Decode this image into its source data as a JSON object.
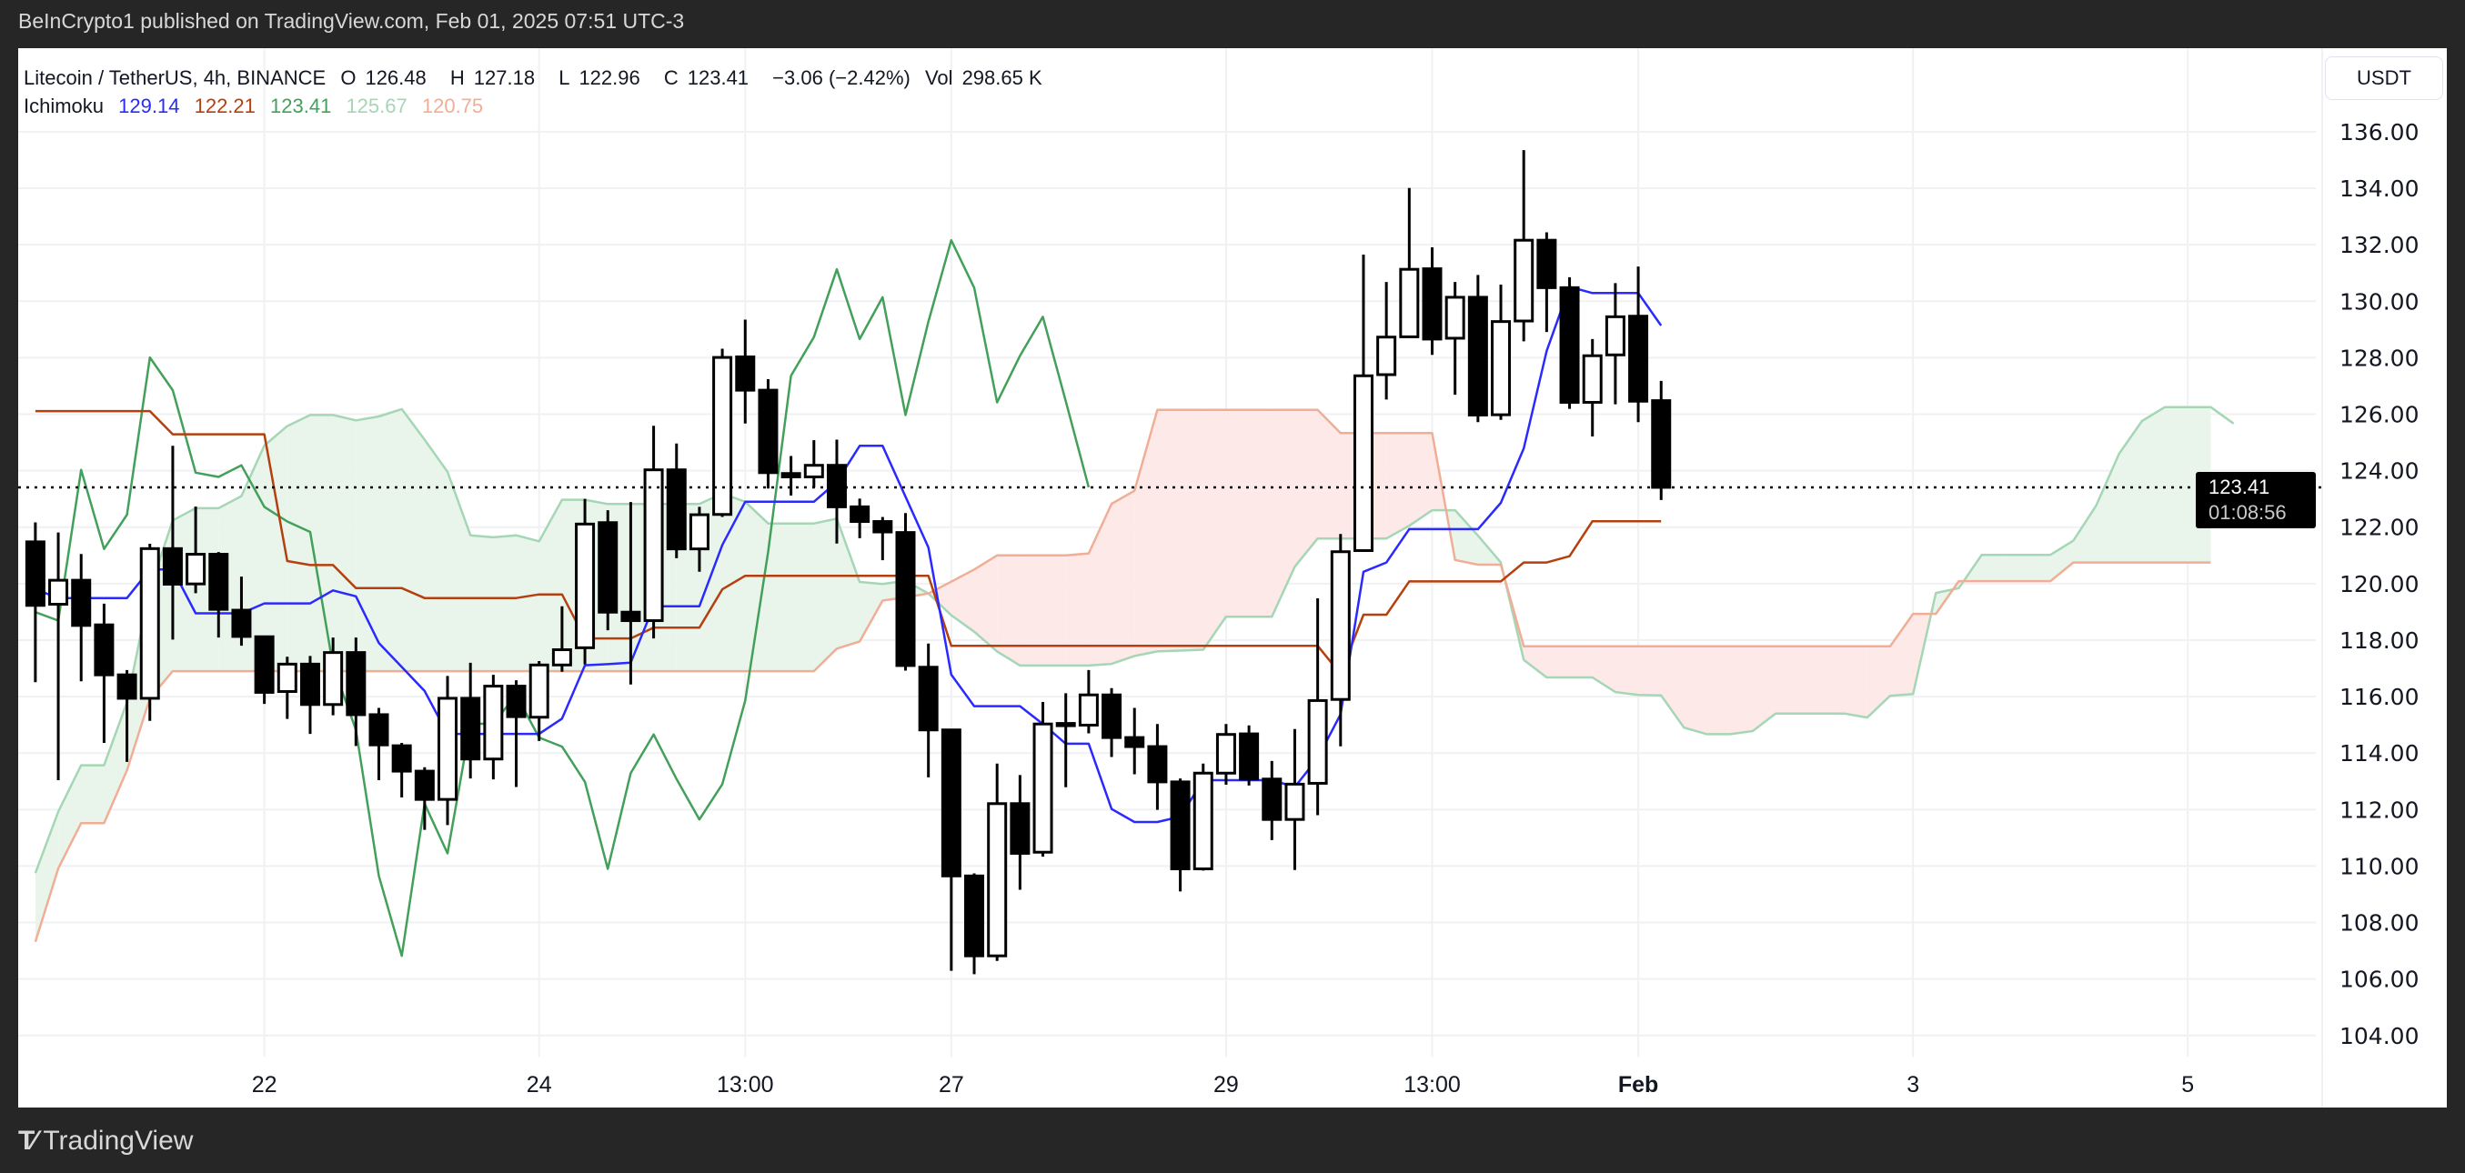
{
  "header": {
    "published": "BeInCrypto1 published on TradingView.com, Feb 01, 2025 07:51 UTC-3"
  },
  "legend": {
    "symbol": "Litecoin / TetherUS, 4h, BINANCE",
    "ohlc": [
      {
        "label": "O",
        "value": "126.48"
      },
      {
        "label": "H",
        "value": "127.18"
      },
      {
        "label": "L",
        "value": "122.96"
      },
      {
        "label": "C",
        "value": "123.41"
      }
    ],
    "change": "−3.06 (−2.42%)",
    "volume_label": "Vol",
    "volume": "298.65 K",
    "indicator": "Ichimoku",
    "indicator_values": [
      "129.14",
      "122.21",
      "123.41",
      "125.67",
      "120.75"
    ]
  },
  "axis": {
    "currency": "USDT",
    "last_price": "123.41",
    "countdown": "01:08:56"
  },
  "footer": {
    "brand": "TradingView",
    "logo_icon": "tradingview-logo-icon"
  },
  "colors": {
    "tenkan": "#2a2aff",
    "kijun": "#b5400f",
    "chikou": "#43a05a",
    "span_a": "#a5d6b5",
    "span_b": "#f0ae96",
    "cloud_bull": "#e9f5eb",
    "cloud_bear": "#fde9e7",
    "candle_up_fill": "#ffffff",
    "candle_down_fill": "#000000",
    "candle_border": "#000000"
  },
  "chart_data": {
    "type": "candlestick",
    "title": "",
    "interval_hours": 4,
    "start": "2025-01-20 09:00",
    "x_range": [
      "2025-01-20 06:00",
      "2025-02-06 00:00"
    ],
    "ylim": [
      103.22,
      138.96
    ],
    "grid": true,
    "price_scale_side": "right",
    "yticks": [
      104,
      106,
      108,
      110,
      112,
      114,
      116,
      118,
      120,
      122,
      124,
      126,
      128,
      130,
      132,
      134,
      136
    ],
    "xticks": [
      {
        "label": "22",
        "time": "2025-01-22 01:00"
      },
      {
        "label": "24",
        "time": "2025-01-24 01:00"
      },
      {
        "label": "13:00",
        "time": "2025-01-25 13:00"
      },
      {
        "label": "27",
        "time": "2025-01-27 01:00"
      },
      {
        "label": "29",
        "time": "2025-01-29 01:00"
      },
      {
        "label": "13:00",
        "time": "2025-01-30 13:00"
      },
      {
        "label": "Feb",
        "time": "2025-02-01 01:00"
      },
      {
        "label": "3",
        "time": "2025-02-03 01:00"
      },
      {
        "label": "5",
        "time": "2025-02-05 01:00"
      }
    ],
    "last_price_line": 123.41,
    "ohlc": [
      [
        121.48,
        122.17,
        116.51,
        119.23
      ],
      [
        119.27,
        121.81,
        113.04,
        120.12
      ],
      [
        120.12,
        121.05,
        116.54,
        118.52
      ],
      [
        118.54,
        119.29,
        114.36,
        116.77
      ],
      [
        116.77,
        116.94,
        113.69,
        115.94
      ],
      [
        115.94,
        121.41,
        115.14,
        121.24
      ],
      [
        121.24,
        124.88,
        118.02,
        119.98
      ],
      [
        119.99,
        122.73,
        119.66,
        121.04
      ],
      [
        121.04,
        121.12,
        118.09,
        119.09
      ],
      [
        119.06,
        120.25,
        117.8,
        118.13
      ],
      [
        118.12,
        118.14,
        115.74,
        116.15
      ],
      [
        116.18,
        117.41,
        115.21,
        117.15
      ],
      [
        117.15,
        117.44,
        114.68,
        115.72
      ],
      [
        115.72,
        118.09,
        115.34,
        117.56
      ],
      [
        117.56,
        118.09,
        114.25,
        115.36
      ],
      [
        115.36,
        115.6,
        113.04,
        114.29
      ],
      [
        114.26,
        114.36,
        112.43,
        113.36
      ],
      [
        113.36,
        113.5,
        111.28,
        112.36
      ],
      [
        112.36,
        116.73,
        111.45,
        115.94
      ],
      [
        115.94,
        117.2,
        113.1,
        113.79
      ],
      [
        113.79,
        116.77,
        113.07,
        116.37
      ],
      [
        116.37,
        116.58,
        112.8,
        115.29
      ],
      [
        115.27,
        117.26,
        114.43,
        117.12
      ],
      [
        117.12,
        119.2,
        116.88,
        117.66
      ],
      [
        117.73,
        123.0,
        117.14,
        122.11
      ],
      [
        122.16,
        122.6,
        118.35,
        118.99
      ],
      [
        118.99,
        122.89,
        116.43,
        118.69
      ],
      [
        118.69,
        125.59,
        118.06,
        124.03
      ],
      [
        124.03,
        124.96,
        120.9,
        121.23
      ],
      [
        121.23,
        122.72,
        120.42,
        122.44
      ],
      [
        122.45,
        128.32,
        122.36,
        128.01
      ],
      [
        128.03,
        129.35,
        125.67,
        126.85
      ],
      [
        126.85,
        127.24,
        123.37,
        123.93
      ],
      [
        123.9,
        124.52,
        123.12,
        123.78
      ],
      [
        123.78,
        125.08,
        123.41,
        124.19
      ],
      [
        124.19,
        125.1,
        121.42,
        122.72
      ],
      [
        122.72,
        123.01,
        121.61,
        122.2
      ],
      [
        122.2,
        122.36,
        120.83,
        121.83
      ],
      [
        121.81,
        122.5,
        116.92,
        117.1
      ],
      [
        117.04,
        117.88,
        113.14,
        114.82
      ],
      [
        114.82,
        114.82,
        106.29,
        109.65
      ],
      [
        109.65,
        109.74,
        106.17,
        106.82
      ],
      [
        106.82,
        113.63,
        106.64,
        112.21
      ],
      [
        112.21,
        113.22,
        109.16,
        110.45
      ],
      [
        110.49,
        115.81,
        110.33,
        115.03
      ],
      [
        115.03,
        116.12,
        112.79,
        115.05
      ],
      [
        114.99,
        116.94,
        114.7,
        116.06
      ],
      [
        116.06,
        116.3,
        113.86,
        114.55
      ],
      [
        114.55,
        115.6,
        113.25,
        114.23
      ],
      [
        114.23,
        115.03,
        111.99,
        112.98
      ],
      [
        112.98,
        113.1,
        109.1,
        109.9
      ],
      [
        109.9,
        113.63,
        109.84,
        113.29
      ],
      [
        113.29,
        115.03,
        112.88,
        114.66
      ],
      [
        114.68,
        114.98,
        112.85,
        113.08
      ],
      [
        113.08,
        113.72,
        110.92,
        111.65
      ],
      [
        111.65,
        114.85,
        109.86,
        112.9
      ],
      [
        112.93,
        119.48,
        111.8,
        115.86
      ],
      [
        115.9,
        121.76,
        114.24,
        121.13
      ],
      [
        121.17,
        131.65,
        121.17,
        127.36
      ],
      [
        127.4,
        130.68,
        126.52,
        128.73
      ],
      [
        128.74,
        134.01,
        128.74,
        131.13
      ],
      [
        131.15,
        131.91,
        128.1,
        128.66
      ],
      [
        128.69,
        130.68,
        126.69,
        130.14
      ],
      [
        130.14,
        130.93,
        125.72,
        125.97
      ],
      [
        125.98,
        130.59,
        125.8,
        129.28
      ],
      [
        129.3,
        135.35,
        128.58,
        132.16
      ],
      [
        132.16,
        132.44,
        128.91,
        130.48
      ],
      [
        130.48,
        130.85,
        126.19,
        126.42
      ],
      [
        126.42,
        128.66,
        125.21,
        128.07
      ],
      [
        128.1,
        130.64,
        126.35,
        129.45
      ],
      [
        129.47,
        131.23,
        125.72,
        126.46
      ],
      [
        126.48,
        127.18,
        122.96,
        123.41
      ]
    ],
    "ichimoku": {
      "displacement": 26,
      "tenkan": [
        119.8,
        119.49,
        119.49,
        119.49,
        119.49,
        120.5,
        120.5,
        118.95,
        118.95,
        118.95,
        119.3,
        119.3,
        119.3,
        119.76,
        119.55,
        117.9,
        117.05,
        116.2,
        114.68,
        114.68,
        114.68,
        114.68,
        114.68,
        115.22,
        117.11,
        117.15,
        117.2,
        119.2,
        119.2,
        119.2,
        121.37,
        122.9,
        122.9,
        122.9,
        122.9,
        123.6,
        124.88,
        124.88,
        123.08,
        121.28,
        116.78,
        115.66,
        115.66,
        115.66,
        115.03,
        114.33,
        114.33,
        112.02,
        111.56,
        111.56,
        111.75,
        113.04,
        113.04,
        113.04,
        113.04,
        112.8,
        113.82,
        115.37,
        120.42,
        120.75,
        121.93,
        121.93,
        121.93,
        121.93,
        122.86,
        124.79,
        128.24,
        130.51,
        130.29,
        130.29,
        130.29,
        129.14
      ],
      "kijun": [
        126.11,
        126.11,
        126.11,
        126.11,
        126.11,
        126.11,
        125.29,
        125.29,
        125.29,
        125.29,
        125.29,
        120.8,
        120.66,
        120.66,
        119.84,
        119.84,
        119.84,
        119.49,
        119.49,
        119.49,
        119.49,
        119.49,
        119.62,
        119.62,
        118.06,
        118.06,
        118.06,
        118.44,
        118.44,
        118.44,
        119.8,
        120.28,
        120.28,
        120.28,
        120.28,
        120.28,
        120.28,
        120.28,
        120.28,
        120.28,
        117.8,
        117.8,
        117.8,
        117.8,
        117.8,
        117.8,
        117.8,
        117.8,
        117.8,
        117.8,
        117.8,
        117.8,
        117.8,
        117.8,
        117.8,
        117.8,
        117.8,
        116.8,
        118.9,
        118.9,
        120.08,
        120.08,
        120.08,
        120.08,
        120.08,
        120.75,
        120.75,
        120.97,
        122.21,
        122.21,
        122.21,
        122.21
      ],
      "span_a": [
        109.75,
        111.93,
        113.57,
        113.57,
        115.8,
        119.8,
        122.24,
        122.67,
        122.67,
        123.1,
        124.89,
        125.58,
        125.97,
        125.97,
        125.78,
        125.92,
        126.18,
        125.1,
        123.96,
        121.71,
        121.64,
        121.71,
        121.5,
        122.97,
        122.97,
        122.82,
        122.82,
        122.82,
        122.82,
        122.82,
        123.19,
        122.9,
        122.13,
        122.13,
        122.13,
        122.3,
        120.06,
        119.99,
        120.1,
        119.65,
        118.88,
        118.3,
        117.6,
        117.1,
        117.1,
        117.1,
        117.1,
        117.16,
        117.44,
        117.6,
        117.63,
        117.66,
        118.83,
        118.83,
        118.83,
        120.6,
        121.6,
        121.6,
        121.6,
        121.6,
        122.05,
        122.6,
        122.6,
        121.7,
        120.75,
        117.3,
        116.68,
        116.68,
        116.68,
        116.16,
        116.06,
        116.04,
        114.9,
        114.67,
        114.67,
        114.78,
        115.4,
        115.4,
        115.4,
        115.4,
        115.26,
        116.03,
        116.09,
        119.67,
        119.84,
        121.02,
        121.02,
        121.02,
        121.02,
        121.52,
        122.77,
        124.6,
        125.76,
        126.25,
        126.25,
        126.25,
        125.67
      ],
      "span_b": [
        107.32,
        109.92,
        111.52,
        111.52,
        113.39,
        115.94,
        116.9,
        116.9,
        116.9,
        116.9,
        116.9,
        116.9,
        116.9,
        116.9,
        116.9,
        116.9,
        116.9,
        116.9,
        116.9,
        116.9,
        116.9,
        116.9,
        116.9,
        116.9,
        116.9,
        116.9,
        116.9,
        116.9,
        116.9,
        116.9,
        116.9,
        116.9,
        116.9,
        116.9,
        116.9,
        117.7,
        117.95,
        119.4,
        119.52,
        119.65,
        120.07,
        120.5,
        121.0,
        121.0,
        121.0,
        121.0,
        121.07,
        122.83,
        123.29,
        126.15,
        126.15,
        126.15,
        126.15,
        126.15,
        126.15,
        126.15,
        126.15,
        125.33,
        125.33,
        125.33,
        125.33,
        125.33,
        120.84,
        120.67,
        120.67,
        117.78,
        117.78,
        117.78,
        117.78,
        117.78,
        117.78,
        117.78,
        117.78,
        117.78,
        117.78,
        117.78,
        117.78,
        117.78,
        117.78,
        117.78,
        117.78,
        117.78,
        118.93,
        118.93,
        120.09,
        120.09,
        120.09,
        120.09,
        120.09,
        120.75,
        120.75,
        120.75,
        120.75,
        120.75,
        120.75,
        120.75
      ]
    }
  }
}
